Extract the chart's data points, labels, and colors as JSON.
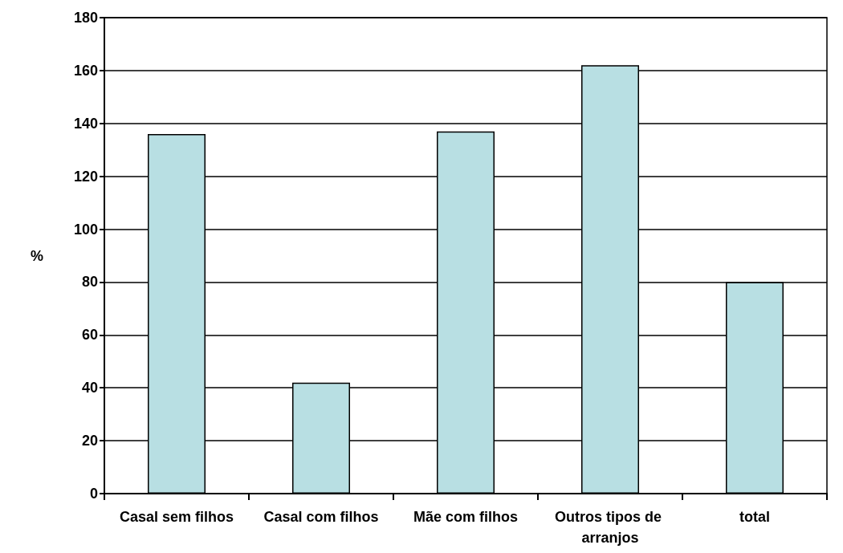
{
  "chart_data": {
    "type": "bar",
    "ylabel": "%",
    "categories": [
      "Casal sem filhos",
      "Casal com filhos",
      "Mãe com filhos",
      "Outros tipos de arranjos",
      "total"
    ],
    "values": [
      136,
      42,
      137,
      162,
      80
    ],
    "color": "#b8dfe3",
    "ylim": [
      0,
      180
    ],
    "yticks": [
      0,
      20,
      40,
      60,
      80,
      100,
      120,
      140,
      160,
      180
    ],
    "grid": "y"
  }
}
